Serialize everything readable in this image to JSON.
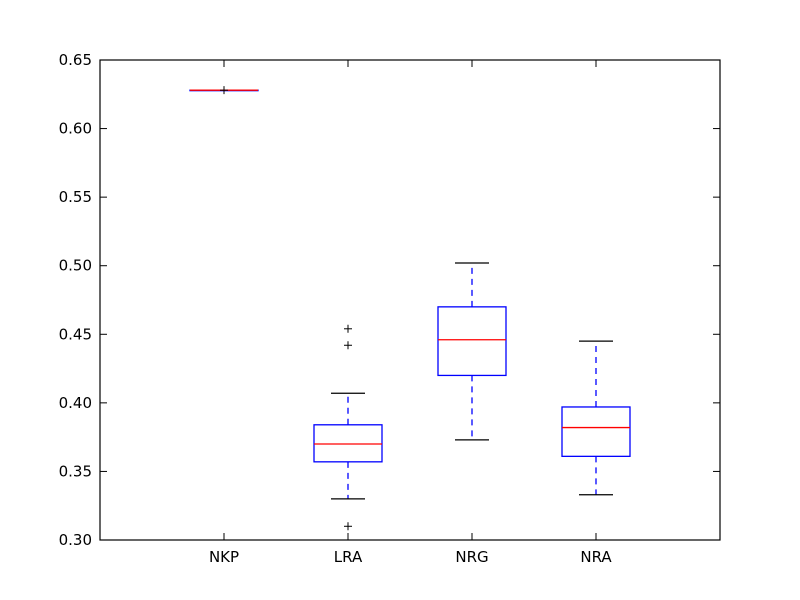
{
  "chart_data": {
    "type": "box",
    "title": "",
    "xlabel": "",
    "ylabel": "",
    "ylim": [
      0.3,
      0.65
    ],
    "yticks": [
      {
        "value": 0.3,
        "label": "0.30"
      },
      {
        "value": 0.35,
        "label": "0.35"
      },
      {
        "value": 0.4,
        "label": "0.40"
      },
      {
        "value": 0.45,
        "label": "0.45"
      },
      {
        "value": 0.5,
        "label": "0.50"
      },
      {
        "value": 0.55,
        "label": "0.55"
      },
      {
        "value": 0.6,
        "label": "0.60"
      },
      {
        "value": 0.65,
        "label": "0.65"
      }
    ],
    "grid": false,
    "categories": [
      "NKP",
      "LRA",
      "NRG",
      "NRA"
    ],
    "boxes": [
      {
        "category": "NKP",
        "whisker_low": 0.628,
        "q1": 0.628,
        "median": 0.628,
        "q3": 0.628,
        "whisker_high": 0.628,
        "outliers": [
          0.628
        ]
      },
      {
        "category": "LRA",
        "whisker_low": 0.33,
        "q1": 0.357,
        "median": 0.37,
        "q3": 0.384,
        "whisker_high": 0.407,
        "outliers": [
          0.31,
          0.442,
          0.454
        ]
      },
      {
        "category": "NRG",
        "whisker_low": 0.373,
        "q1": 0.42,
        "median": 0.446,
        "q3": 0.47,
        "whisker_high": 0.502,
        "outliers": []
      },
      {
        "category": "NRA",
        "whisker_low": 0.333,
        "q1": 0.361,
        "median": 0.382,
        "q3": 0.397,
        "whisker_high": 0.445,
        "outliers": []
      }
    ],
    "colors": {
      "box": "#0000ff",
      "median": "#ff0000",
      "whisker_cap": "#000000",
      "outlier": "#000000",
      "axes": "#000000"
    }
  }
}
